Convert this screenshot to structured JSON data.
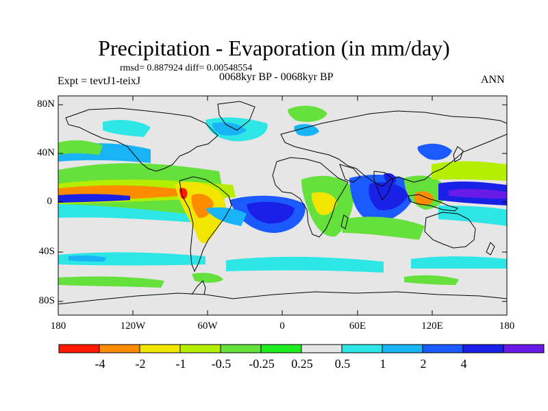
{
  "figure": {
    "title": "Precipitation - Evaporation (in mm/day)",
    "stats": "rmsd= 0.887924 diff= 0.00548554",
    "experiment": "Expt = tevtJ1-teixJ",
    "period": "0068kyr BP - 0068kyr BP",
    "season": "ANN"
  },
  "map": {
    "projection": "cylindrical equidistant",
    "lat_ticks": [
      "80N",
      "40N",
      "0",
      "40S",
      "80S"
    ],
    "lon_ticks": [
      "180",
      "120W",
      "60W",
      "0",
      "60E",
      "120E",
      "180"
    ],
    "lon_range": [
      -180,
      180
    ],
    "lat_range": [
      -90,
      90
    ],
    "coastlines": "black"
  },
  "colorbar": {
    "labels": [
      "-4",
      "-2",
      "-1",
      "-0.5",
      "-0.25",
      "0.25",
      "0.5",
      "1",
      "2",
      "4"
    ],
    "colors": [
      "#ff1a00",
      "#ff8c00",
      "#f2e600",
      "#b5ee00",
      "#66e03d",
      "#1eee1e",
      "#e6e6e6",
      "#2ee6e6",
      "#19b4f5",
      "#1a5aff",
      "#1a21e6",
      "#6a1ae6"
    ]
  },
  "colors": {
    "land_background": "#e6e6e6",
    "frame": "#000000"
  }
}
